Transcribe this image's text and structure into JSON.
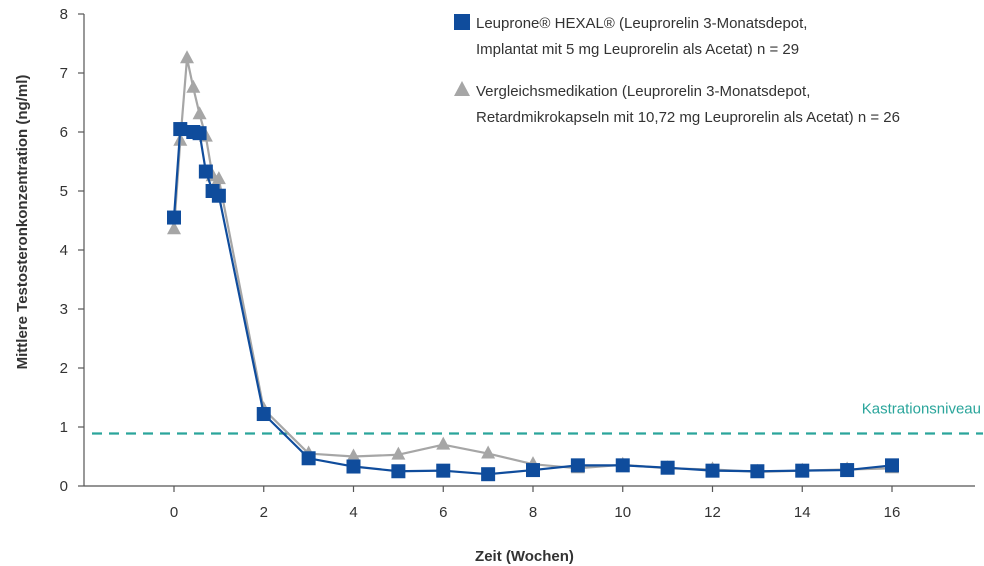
{
  "chart_data": {
    "type": "line",
    "xlabel": "Zeit (Wochen)",
    "ylabel": "Mittlere Testosteronkonzentration (ng/ml)",
    "xlim": [
      -2,
      17.8
    ],
    "ylim": [
      0,
      8
    ],
    "xticks": [
      0,
      2,
      4,
      6,
      8,
      10,
      12,
      14,
      16
    ],
    "yticks": [
      0,
      1,
      2,
      3,
      4,
      5,
      6,
      7,
      8
    ],
    "grid": false,
    "legend_position": "top-right",
    "series": [
      {
        "name_lines": [
          "Leuprone® HEXAL® (Leuprorelin 3-Monatsdepot,",
          "Implantat mit 5 mg Leuprorelin als Acetat) n = 29"
        ],
        "marker": "square",
        "color": "#0f4c9c",
        "x": [
          0,
          0.14,
          0.43,
          0.57,
          0.71,
          0.86,
          1,
          2,
          3,
          4,
          5,
          6,
          7,
          8,
          9,
          10,
          11,
          12,
          13,
          14,
          15,
          16
        ],
        "y": [
          4.55,
          6.05,
          6.0,
          5.98,
          5.33,
          5.0,
          4.92,
          1.22,
          0.47,
          0.33,
          0.25,
          0.26,
          0.2,
          0.27,
          0.35,
          0.35,
          0.31,
          0.26,
          0.25,
          0.26,
          0.27,
          0.35
        ]
      },
      {
        "name_lines": [
          "Vergleichsmedikation (Leuprorelin 3-Monatsdepot,",
          "Retardmikrokapseln mit 10,72 mg Leuprorelin als Acetat) n = 26"
        ],
        "marker": "triangle",
        "color": "#a6a6a6",
        "x": [
          0,
          0.14,
          0.29,
          0.43,
          0.57,
          0.71,
          0.86,
          1,
          2,
          3,
          4,
          5,
          6,
          7,
          8,
          9,
          10,
          11,
          12,
          13,
          14,
          15,
          16
        ],
        "y": [
          4.35,
          5.85,
          7.25,
          6.75,
          6.3,
          5.92,
          5.25,
          5.2,
          1.3,
          0.55,
          0.5,
          0.53,
          0.7,
          0.55,
          0.37,
          0.3,
          0.36,
          0.3,
          0.28,
          0.24,
          0.26,
          0.28,
          0.3
        ]
      }
    ],
    "threshold": {
      "label": "Kastrationsniveau",
      "y": 0.5,
      "color": "#2aa59b",
      "style": "dashed"
    }
  }
}
